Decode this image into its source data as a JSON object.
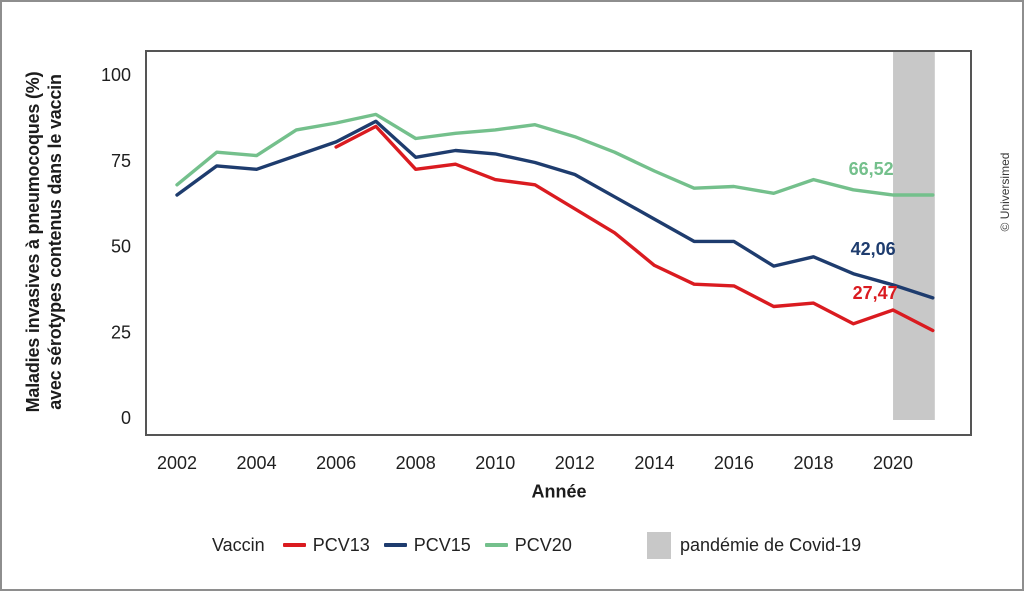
{
  "watermark": "© Universimed",
  "legend": {
    "title": "Vaccin",
    "items": [
      {
        "label": "PCV13",
        "color": "#da1b20",
        "type": "line"
      },
      {
        "label": "PCV15",
        "color": "#1e3c6e",
        "type": "line"
      },
      {
        "label": "PCV20",
        "color": "#74c08c",
        "type": "line"
      }
    ],
    "band_item": {
      "label": "pandémie de Covid-19",
      "color": "#c8c8c8",
      "type": "rect"
    }
  },
  "chart_data": {
    "type": "line",
    "title": "",
    "xlabel": "Année",
    "ylabel_line1": "Maladies invasives à pneumocoques (%)",
    "ylabel_line2": "avec sérotypes contenus dans le vaccin",
    "ylim": [
      0,
      100
    ],
    "grid": false,
    "legend_position": "bottom",
    "x": [
      2002,
      2003,
      2004,
      2005,
      2006,
      2007,
      2008,
      2009,
      2010,
      2011,
      2012,
      2013,
      2014,
      2015,
      2016,
      2017,
      2018,
      2019,
      2020,
      2021
    ],
    "x_ticks": [
      2002,
      2004,
      2006,
      2008,
      2010,
      2012,
      2014,
      2016,
      2018,
      2020
    ],
    "y_ticks": [
      0,
      25,
      50,
      75,
      100
    ],
    "series": [
      {
        "name": "PCV13",
        "color": "#da1b20",
        "values": [
          null,
          null,
          null,
          null,
          79,
          85,
          72.5,
          74,
          69.5,
          68,
          61,
          54,
          44.5,
          39,
          38.5,
          32.5,
          33.5,
          27.47,
          31.5,
          25.5
        ]
      },
      {
        "name": "PCV15",
        "color": "#1e3c6e",
        "values": [
          65,
          73.5,
          72.5,
          76.5,
          80.5,
          86.5,
          76,
          78,
          77,
          74.5,
          71,
          64.5,
          58,
          51.5,
          51.5,
          44.3,
          47,
          42.06,
          38.8,
          35
        ]
      },
      {
        "name": "PCV20",
        "color": "#74c08c",
        "values": [
          68,
          77.5,
          76.5,
          84,
          86,
          88.5,
          81.5,
          83,
          84,
          85.5,
          82,
          77.5,
          72,
          67,
          67.5,
          65.5,
          69.5,
          66.52,
          65,
          65
        ]
      }
    ],
    "annotations": [
      {
        "text": "66,52",
        "series": "PCV20",
        "year": 2019.45,
        "value": 72.6
      },
      {
        "text": "42,06",
        "series": "PCV15",
        "year": 2019.5,
        "value": 49.3
      },
      {
        "text": "27,47",
        "series": "PCV13",
        "year": 2019.55,
        "value": 36.4
      }
    ],
    "band": {
      "label": "pandémie de Covid-19",
      "from": 2020,
      "to": 2021,
      "color": "#c8c8c8"
    }
  }
}
